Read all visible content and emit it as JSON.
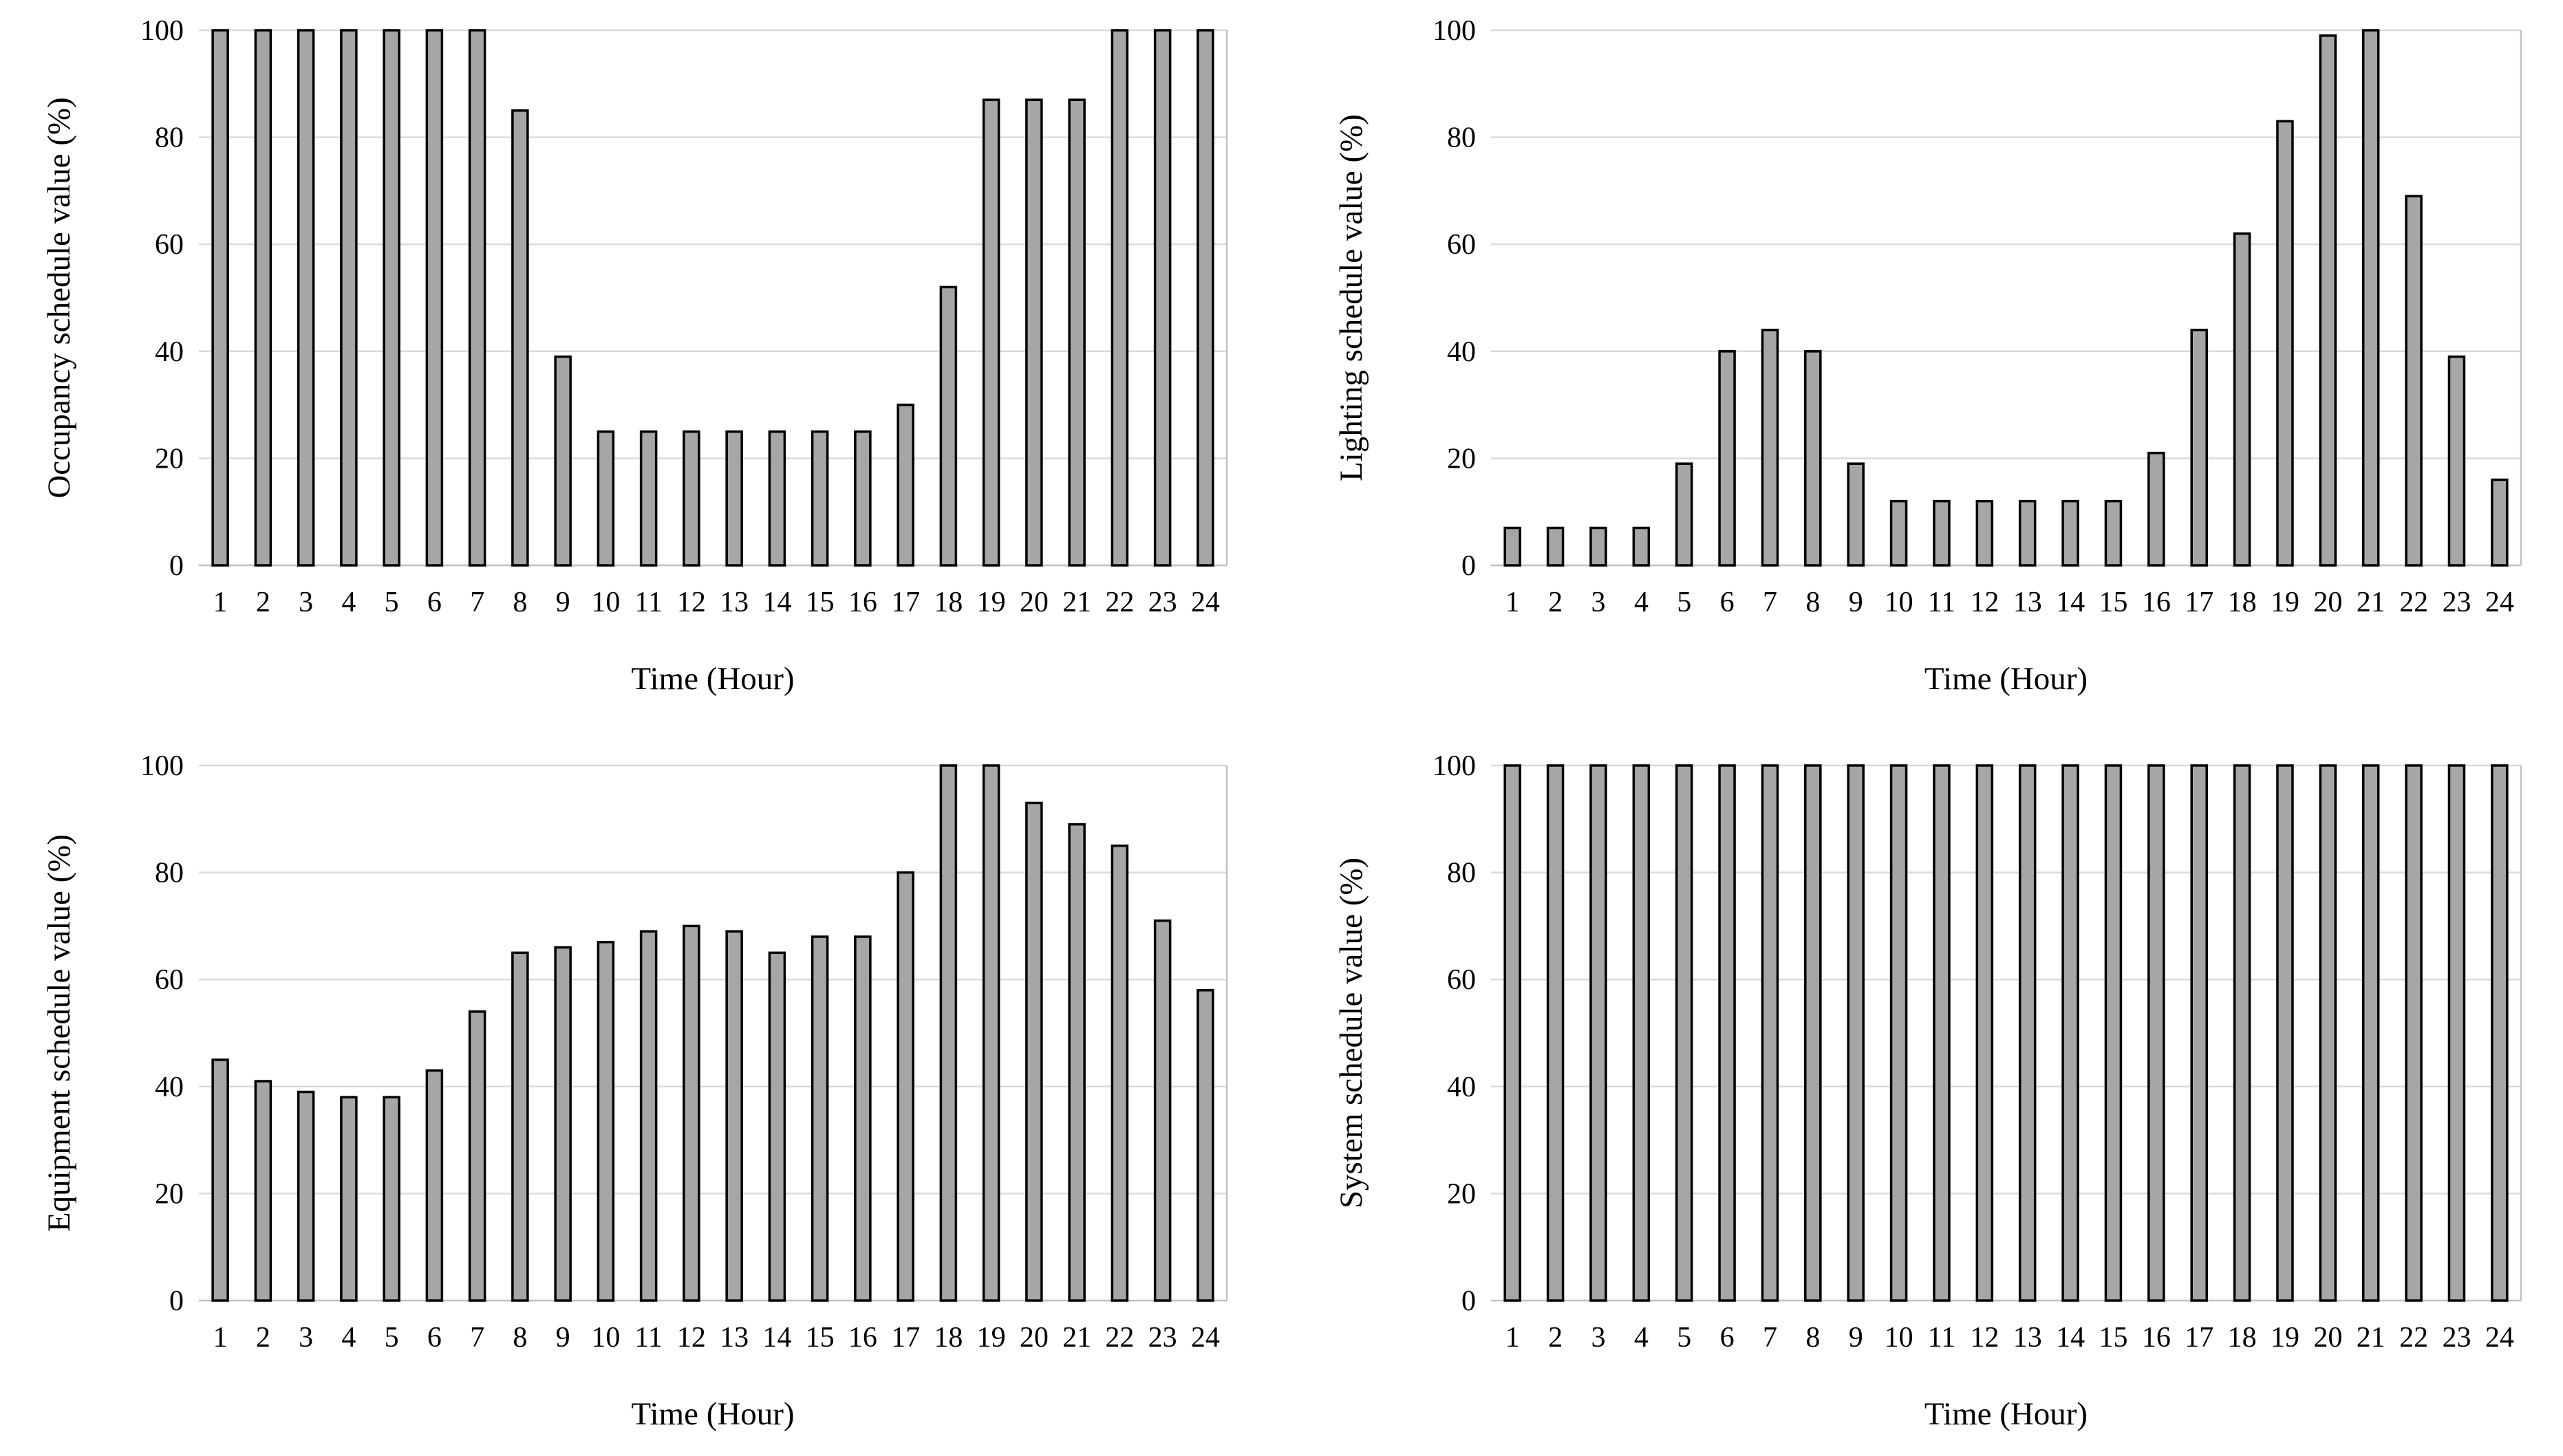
{
  "colors": {
    "bar_fill": "#a6a6a6",
    "bar_stroke": "#000000",
    "gridline": "#d9d9d9",
    "background": "#ffffff"
  },
  "chart_data": [
    {
      "type": "bar",
      "title": "",
      "position": "top-left",
      "xlabel": "Time (Hour)",
      "ylabel": "Occupancy schedule value (%)",
      "ylim": [
        0,
        100
      ],
      "yticks": [
        0,
        20,
        40,
        60,
        80,
        100
      ],
      "categories": [
        "1",
        "2",
        "3",
        "4",
        "5",
        "6",
        "7",
        "8",
        "9",
        "10",
        "11",
        "12",
        "13",
        "14",
        "15",
        "16",
        "17",
        "18",
        "19",
        "20",
        "21",
        "22",
        "23",
        "24"
      ],
      "values": [
        100,
        100,
        100,
        100,
        100,
        100,
        100,
        85,
        39,
        25,
        25,
        25,
        25,
        25,
        25,
        25,
        30,
        52,
        87,
        87,
        87,
        100,
        100,
        100
      ]
    },
    {
      "type": "bar",
      "title": "",
      "position": "top-right",
      "xlabel": "Time (Hour)",
      "ylabel": "Lighting schedule value (%)",
      "ylim": [
        0,
        100
      ],
      "yticks": [
        0,
        20,
        40,
        60,
        80,
        100
      ],
      "categories": [
        "1",
        "2",
        "3",
        "4",
        "5",
        "6",
        "7",
        "8",
        "9",
        "10",
        "11",
        "12",
        "13",
        "14",
        "15",
        "16",
        "17",
        "18",
        "19",
        "20",
        "21",
        "22",
        "23",
        "24"
      ],
      "values": [
        7,
        7,
        7,
        7,
        19,
        40,
        44,
        40,
        19,
        12,
        12,
        12,
        12,
        12,
        12,
        21,
        44,
        62,
        83,
        99,
        100,
        69,
        39,
        16
      ]
    },
    {
      "type": "bar",
      "title": "",
      "position": "bottom-left",
      "xlabel": "Time (Hour)",
      "ylabel": "Equipment schedule value (%)",
      "ylim": [
        0,
        100
      ],
      "yticks": [
        0,
        20,
        40,
        60,
        80,
        100
      ],
      "categories": [
        "1",
        "2",
        "3",
        "4",
        "5",
        "6",
        "7",
        "8",
        "9",
        "10",
        "11",
        "12",
        "13",
        "14",
        "15",
        "16",
        "17",
        "18",
        "19",
        "20",
        "21",
        "22",
        "23",
        "24"
      ],
      "values": [
        45,
        41,
        39,
        38,
        38,
        43,
        54,
        65,
        66,
        67,
        69,
        70,
        69,
        65,
        68,
        68,
        80,
        100,
        100,
        93,
        89,
        85,
        71,
        58
      ]
    },
    {
      "type": "bar",
      "title": "",
      "position": "bottom-right",
      "xlabel": "Time (Hour)",
      "ylabel": "System schedule value (%)",
      "ylim": [
        0,
        100
      ],
      "yticks": [
        0,
        20,
        40,
        60,
        80,
        100
      ],
      "categories": [
        "1",
        "2",
        "3",
        "4",
        "5",
        "6",
        "7",
        "8",
        "9",
        "10",
        "11",
        "12",
        "13",
        "14",
        "15",
        "16",
        "17",
        "18",
        "19",
        "20",
        "21",
        "22",
        "23",
        "24"
      ],
      "values": [
        100,
        100,
        100,
        100,
        100,
        100,
        100,
        100,
        100,
        100,
        100,
        100,
        100,
        100,
        100,
        100,
        100,
        100,
        100,
        100,
        100,
        100,
        100,
        100
      ]
    }
  ]
}
